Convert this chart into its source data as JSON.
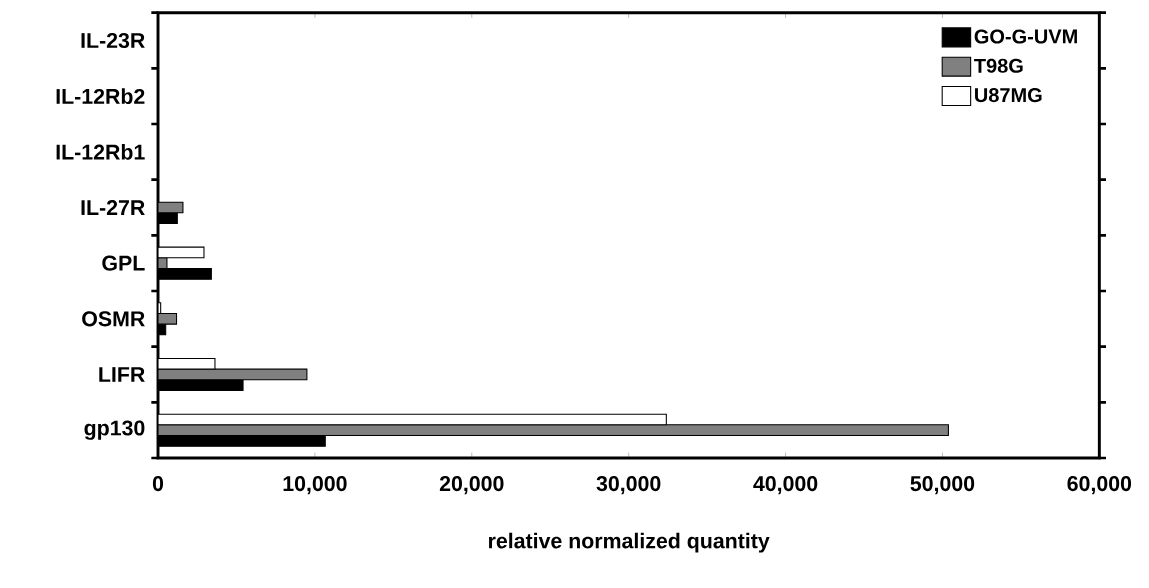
{
  "chart_data": {
    "type": "bar",
    "orientation": "horizontal",
    "xlabel": "relative normalized quantity",
    "categories": [
      "IL-23R",
      "IL-12Rb2",
      "IL-12Rb1",
      "IL-27R",
      "GPL",
      "OSMR",
      "LIFR",
      "gp130"
    ],
    "series": [
      {
        "name": "GO-G-UVM",
        "color": "#000000",
        "values": [
          0,
          0,
          0,
          1230,
          3400,
          490,
          5420,
          10660
        ]
      },
      {
        "name": "T98G",
        "color": "#808080",
        "values": [
          0,
          0,
          0,
          1590,
          570,
          1180,
          9490,
          50380
        ]
      },
      {
        "name": "U87MG",
        "color": "#ffffff",
        "values": [
          0,
          0,
          0,
          0,
          2930,
          170,
          3630,
          32400
        ]
      }
    ],
    "xlim": [
      0,
      60000
    ],
    "xticks": [
      0,
      {
        "value": 10000,
        "label": "10,000"
      },
      {
        "value": 20000,
        "label": "20,000"
      },
      {
        "value": 30000,
        "label": "30,000"
      },
      {
        "value": 40000,
        "label": "40,000"
      },
      {
        "value": 50000,
        "label": "50,000"
      },
      {
        "value": 60000,
        "label": "60,000"
      }
    ],
    "legend": "top right"
  }
}
